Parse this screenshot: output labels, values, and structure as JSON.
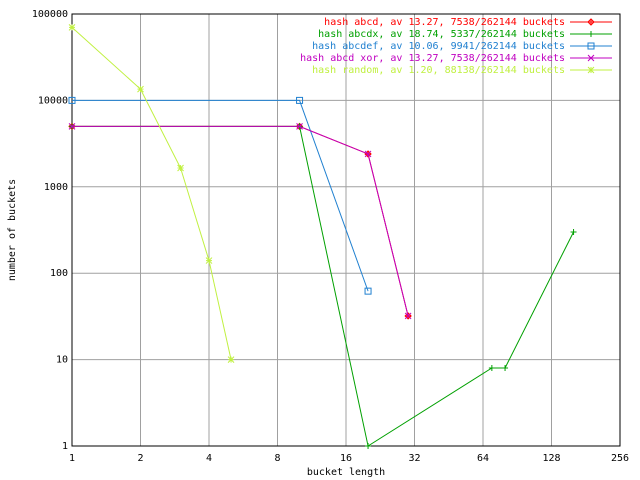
{
  "chart_data": {
    "type": "line",
    "xlabel": "bucket length",
    "ylabel": "number of buckets",
    "xscale": "log2",
    "yscale": "log10",
    "grid": true,
    "legend": "top-right",
    "xlim": [
      1,
      256
    ],
    "xticks": [
      1,
      2,
      4,
      8,
      16,
      32,
      64,
      128,
      256
    ],
    "ylim": [
      1,
      100000
    ],
    "yticks": [
      1,
      10,
      100,
      1000,
      10000,
      100000
    ],
    "series": [
      {
        "name": "hash abcd, av 13.27, 7538/262144 buckets",
        "color": "#ff0000",
        "marker": "plus",
        "x": [
          1,
          10,
          20,
          30
        ],
        "values": [
          5000,
          5000,
          2400,
          32
        ]
      },
      {
        "name": "hash abcdx, av 18.74, 5337/262144 buckets",
        "color": "#00a000",
        "marker": "cross",
        "x": [
          1,
          10,
          20,
          70,
          80,
          160
        ],
        "values": [
          5000,
          5000,
          1,
          8,
          8,
          300
        ]
      },
      {
        "name": "hash abcdef, av 10.06, 9941/262144 buckets",
        "color": "#2080d0",
        "marker": "square",
        "x": [
          1,
          10,
          20
        ],
        "values": [
          10000,
          10000,
          62
        ]
      },
      {
        "name": "hash abcd xor, av 13.27, 7538/262144 buckets",
        "color": "#c000c0",
        "marker": "x",
        "x": [
          1,
          10,
          20,
          30
        ],
        "values": [
          5000,
          5000,
          2400,
          32
        ]
      },
      {
        "name": "hash random, av 1.20, 88138/262144 buckets",
        "color": "#c0f040",
        "marker": "star",
        "x": [
          1,
          2,
          3,
          4,
          5
        ],
        "values": [
          70000,
          13500,
          1650,
          140,
          10
        ]
      }
    ]
  }
}
